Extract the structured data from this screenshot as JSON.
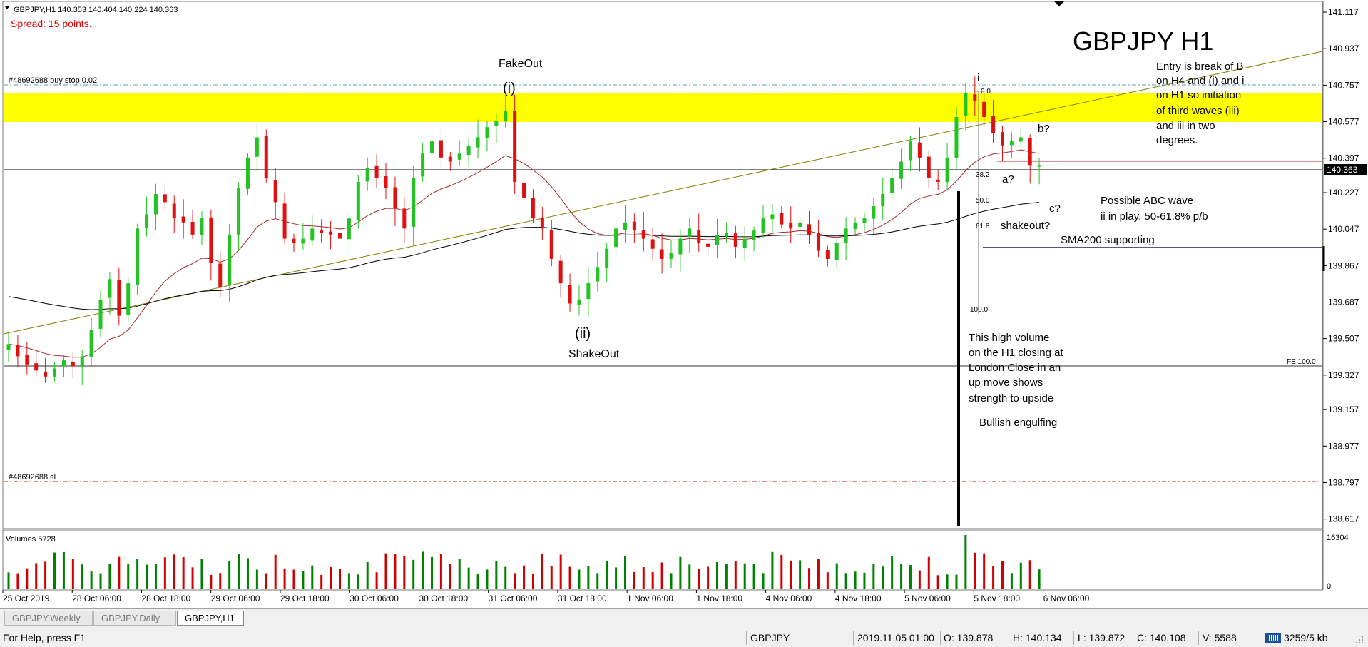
{
  "header": {
    "symbol_line": "GBPJPY,H1  140.353 140.404 140.224 140.363",
    "spread": "Spread: 15 points."
  },
  "chart_title": "GBPJPY H1",
  "price_axis": {
    "ticks": [
      "141.117",
      "140.937",
      "140.757",
      "140.577",
      "140.397",
      "140.227",
      "140.047",
      "139.867",
      "139.687",
      "139.507",
      "139.327",
      "139.157",
      "138.977",
      "138.797",
      "138.617"
    ],
    "current_price": "140.363"
  },
  "time_axis": {
    "labels": [
      "25 Oct 2019",
      "28 Oct 06:00",
      "28 Oct 18:00",
      "29 Oct 06:00",
      "29 Oct 18:00",
      "30 Oct 06:00",
      "30 Oct 18:00",
      "31 Oct 06:00",
      "31 Oct 18:00",
      "1 Nov 06:00",
      "1 Nov 18:00",
      "4 Nov 06:00",
      "4 Nov 18:00",
      "5 Nov 06:00",
      "5 Nov 18:00",
      "6 Nov 06:00"
    ]
  },
  "order_labels": {
    "buy_stop": "#48692688 buy stop 0.02",
    "stop_loss": "#48692688 sl"
  },
  "annotations": {
    "fakeout": "FakeOut",
    "wave_i": "(i)",
    "wave_ii": "(ii)",
    "shakeout": "ShakeOut",
    "small_i": "i",
    "entry_note": [
      "Entry is break of B",
      "on H4 and (i) and i",
      "on H1 so initiation",
      "of third waves (iii)",
      "and iii in two",
      "degrees."
    ],
    "b_q": "b?",
    "a_q": "a?",
    "c_q": "c?",
    "abc_note_1": "Possible ABC wave",
    "abc_note_2": "ii in play.  50-61.8% p/b",
    "shakeout_q": "shakeout?",
    "sma_note": "SMA200 supporting",
    "volume_note": [
      "This high volume",
      "on the H1 closing at",
      "London Close in an",
      "up move shows",
      "strength to upside"
    ],
    "engulfing": "Bullish engulfing",
    "fe_label": "FE 100.0",
    "fib": [
      "0.0",
      "38.2",
      "50.0",
      "61.8",
      "100.0"
    ]
  },
  "volume_panel": {
    "label": "Volumes 5728",
    "max_tick": "16304",
    "zero_tick": "0"
  },
  "tabs": [
    {
      "label": "GBPJPY,Weekly",
      "active": false
    },
    {
      "label": "GBPJPY,Daily",
      "active": false
    },
    {
      "label": "GBPJPY,H1",
      "active": true
    }
  ],
  "status": {
    "help": "For Help, press F1",
    "symbol": "GBPJPY",
    "datetime": "2019.11.05 01:00",
    "open": "O: 139.878",
    "high": "H: 140.134",
    "low": "L: 139.872",
    "close": "C: 140.108",
    "volume": "V: 5588",
    "traffic": "3259/5 kb"
  },
  "colors": {
    "bull": "#22c322",
    "bear": "#e01010",
    "zone": "#ffff00",
    "sma_short": "#a52a2a",
    "sma_long": "#000000",
    "trendline": "#808000",
    "dotted_level": "#5f9ea0",
    "sl_level": "#b22222",
    "spread_text": "#e00000",
    "volume_bull": "#008000",
    "volume_bear": "#d00000"
  },
  "chart_data": {
    "type": "candlestick",
    "symbol": "GBPJPY",
    "timeframe": "H1",
    "ylim": [
      138.57,
      141.17
    ],
    "closes": [
      139.48,
      139.42,
      139.38,
      139.35,
      139.32,
      139.36,
      139.4,
      139.37,
      139.42,
      139.55,
      139.7,
      139.8,
      139.62,
      139.78,
      140.05,
      140.12,
      140.22,
      140.18,
      140.1,
      140.08,
      140.02,
      140.1,
      139.88,
      139.76,
      140.02,
      140.25,
      140.4,
      140.5,
      140.3,
      140.18,
      140.0,
      139.98,
      140.0,
      140.05,
      140.03,
      140.02,
      140.0,
      140.1,
      140.28,
      140.35,
      140.3,
      140.25,
      140.15,
      140.05,
      140.3,
      140.42,
      140.48,
      140.4,
      140.38,
      140.42,
      140.46,
      140.5,
      140.55,
      140.58,
      140.63,
      140.28,
      140.2,
      140.1,
      140.05,
      139.9,
      139.78,
      139.68,
      139.7,
      139.78,
      139.86,
      139.95,
      140.05,
      140.08,
      140.04,
      140.0,
      139.95,
      139.9,
      139.93,
      140.0,
      140.05,
      139.98,
      139.96,
      140.02,
      140.03,
      139.96,
      140.0,
      140.04,
      140.1,
      140.12,
      140.07,
      140.05,
      140.08,
      140.02,
      139.94,
      139.9,
      139.98,
      140.05,
      140.08,
      140.1,
      140.16,
      140.22,
      140.3,
      140.38,
      140.48,
      140.4,
      140.3,
      140.28,
      140.4,
      140.6,
      140.72,
      140.68,
      140.6,
      140.52,
      140.46,
      140.48,
      140.5,
      140.36,
      140.36
    ]
  }
}
